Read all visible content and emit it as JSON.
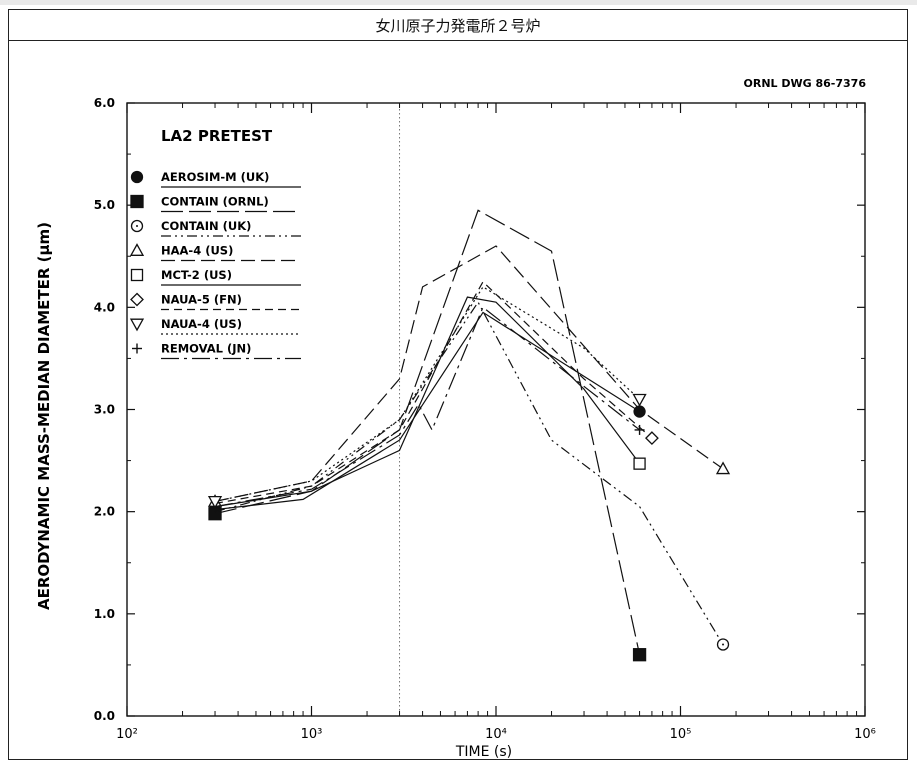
{
  "header": {
    "title": "女川原子力発電所２号炉"
  },
  "figure": {
    "drawing_id": "ORNL DWG 86-7376"
  },
  "chart_data": {
    "type": "line",
    "title": "LA2 PRETEST",
    "xlabel": "TIME (s)",
    "ylabel": "AERODYNAMIC MASS-MEDIAN DIAMETER (μm)",
    "x_scale": "log",
    "xlim": [
      100,
      1000000
    ],
    "ylim": [
      0.0,
      6.0
    ],
    "x_ticks": [
      100,
      1000,
      10000,
      100000,
      1000000
    ],
    "x_tick_labels": [
      "10²",
      "10³",
      "10⁴",
      "10⁵",
      "10⁶"
    ],
    "y_ticks": [
      0.0,
      1.0,
      2.0,
      3.0,
      4.0,
      5.0,
      6.0
    ],
    "y_tick_labels": [
      "0.0",
      "1.0",
      "2.0",
      "3.0",
      "4.0",
      "5.0",
      "6.0"
    ],
    "reference_line_x": 3000,
    "legend_position": "upper-left",
    "series": [
      {
        "name": "AEROSIM-M (UK)",
        "marker": "filled-circle",
        "dash": "solid",
        "x": [
          300,
          900,
          3000,
          8500,
          60000
        ],
        "y": [
          2.02,
          2.12,
          2.7,
          3.95,
          2.98
        ]
      },
      {
        "name": "CONTAIN (ORNL)",
        "marker": "filled-square",
        "dash": "long-dash",
        "x": [
          300,
          1000,
          3000,
          8000,
          20000,
          60000
        ],
        "y": [
          1.98,
          2.2,
          2.8,
          4.95,
          4.55,
          0.6
        ]
      },
      {
        "name": "CONTAIN (UK)",
        "marker": "open-circle",
        "dash": "dash-dot-dot",
        "x": [
          300,
          1000,
          3000,
          8000,
          20000,
          60000,
          170000
        ],
        "y": [
          2.0,
          2.25,
          2.9,
          4.05,
          2.7,
          2.05,
          0.7
        ]
      },
      {
        "name": "HAA-4 (US)",
        "marker": "open-triangle",
        "dash": "dash",
        "x": [
          300,
          1000,
          3000,
          4000,
          10000,
          60000,
          170000
        ],
        "y": [
          2.1,
          2.3,
          3.3,
          4.2,
          4.6,
          3.0,
          2.42
        ]
      },
      {
        "name": "MCT-2 (US)",
        "marker": "open-square",
        "dash": "solid",
        "x": [
          300,
          1000,
          3000,
          7000,
          10000,
          30000,
          60000
        ],
        "y": [
          2.05,
          2.2,
          2.6,
          4.1,
          4.05,
          3.2,
          2.47
        ]
      },
      {
        "name": "NAUA-5 (FN)",
        "marker": "open-diamond",
        "dash": "dash-short",
        "x": [
          300,
          1000,
          3000,
          8500,
          30000,
          70000
        ],
        "y": [
          2.08,
          2.25,
          2.8,
          4.25,
          3.3,
          2.72
        ]
      },
      {
        "name": "NAUA-4 (US)",
        "marker": "open-inverted-triangle",
        "dash": "dotted",
        "x": [
          300,
          1000,
          3000,
          8500,
          30000,
          60000
        ],
        "y": [
          2.1,
          2.3,
          2.9,
          4.2,
          3.6,
          3.1
        ]
      },
      {
        "name": "REMOVAL (JN)",
        "marker": "plus",
        "dash": "long-dash-dot",
        "x": [
          300,
          1000,
          3000,
          3800,
          4500,
          8500,
          60000
        ],
        "y": [
          2.05,
          2.22,
          2.75,
          3.05,
          2.8,
          4.0,
          2.8
        ]
      }
    ]
  },
  "colors": {
    "ink": "#111111",
    "frame": "#222222",
    "background": "#ffffff"
  }
}
